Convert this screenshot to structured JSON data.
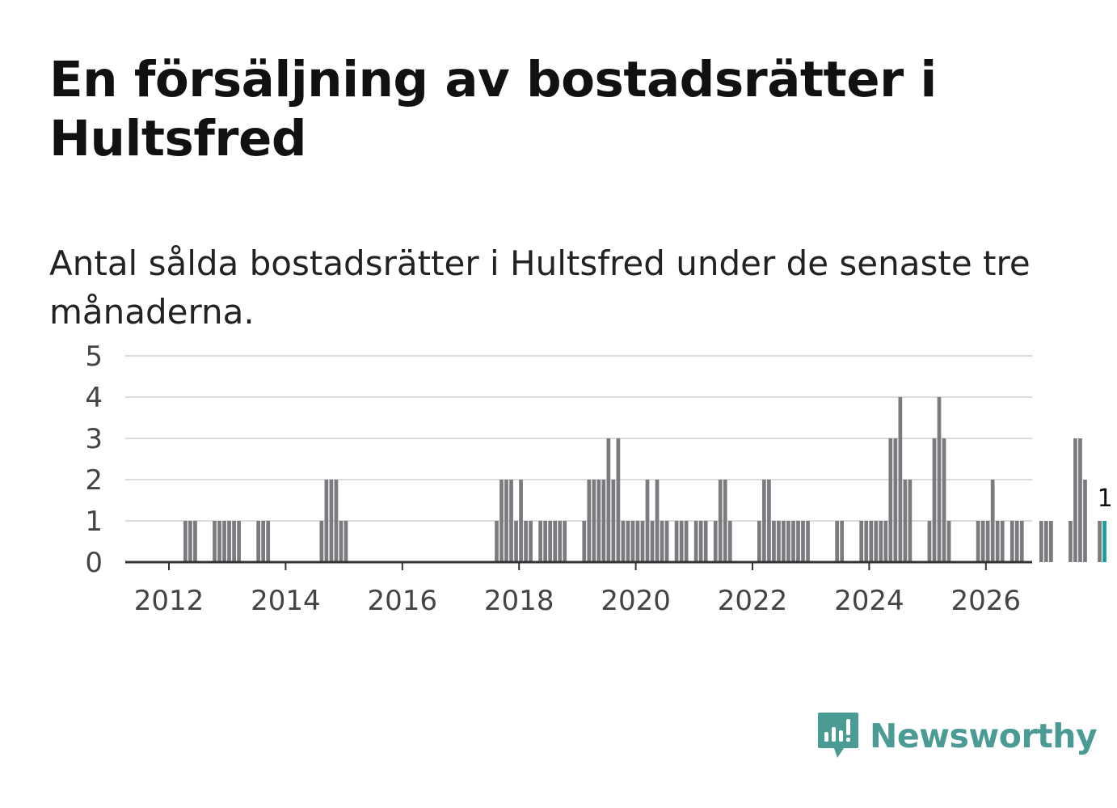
{
  "title": "En försäljning av bostadsrätter i Hultsfred",
  "subtitle": "Antal sålda bostadsrätter i Hultsfred under de senaste tre månaderna.",
  "brand": {
    "name": "Newsworthy",
    "icon": "newsworthy-logo-icon",
    "color": "#4a9b94"
  },
  "colors": {
    "bar": "#7a7a7f",
    "highlight": "#1a9e9a",
    "grid": "#dcdcdc",
    "axis": "#333333"
  },
  "chart_data": {
    "type": "bar",
    "title": "En försäljning av bostadsrätter i Hultsfred",
    "xlabel": "",
    "ylabel": "",
    "x_start": "2011-01",
    "frequency": "monthly",
    "x_ticks": [
      "2012",
      "2014",
      "2016",
      "2018",
      "2020",
      "2022",
      "2024",
      "2026"
    ],
    "y_ticks": [
      "0",
      "1",
      "2",
      "3",
      "4",
      "5"
    ],
    "ylim": [
      0,
      5
    ],
    "grid": true,
    "values": [
      0,
      0,
      0,
      0,
      0,
      0,
      0,
      0,
      0,
      0,
      0,
      0,
      0,
      0,
      0,
      1,
      1,
      1,
      0,
      0,
      0,
      1,
      1,
      1,
      1,
      1,
      1,
      0,
      0,
      0,
      1,
      1,
      1,
      0,
      0,
      0,
      0,
      0,
      0,
      0,
      0,
      0,
      0,
      1,
      2,
      2,
      2,
      1,
      1,
      0,
      0,
      0,
      0,
      0,
      0,
      0,
      0,
      0,
      0,
      0,
      0,
      0,
      0,
      0,
      0,
      0,
      0,
      0,
      0,
      0,
      0,
      0,
      0,
      0,
      0,
      0,
      0,
      0,
      0,
      1,
      2,
      2,
      2,
      1,
      2,
      1,
      1,
      0,
      1,
      1,
      1,
      1,
      1,
      1,
      0,
      0,
      0,
      1,
      2,
      2,
      2,
      2,
      3,
      2,
      3,
      1,
      1,
      1,
      1,
      1,
      2,
      1,
      2,
      1,
      1,
      0,
      1,
      1,
      1,
      0,
      1,
      1,
      1,
      0,
      1,
      2,
      2,
      1,
      0,
      0,
      0,
      0,
      0,
      1,
      2,
      2,
      1,
      1,
      1,
      1,
      1,
      1,
      1,
      1,
      0,
      0,
      0,
      0,
      0,
      1,
      1,
      0,
      0,
      0,
      1,
      1,
      1,
      1,
      1,
      1,
      3,
      3,
      4,
      2,
      2,
      0,
      0,
      0,
      1,
      3,
      4,
      3,
      1,
      0,
      0,
      0,
      0,
      0,
      1,
      1,
      1,
      2,
      1,
      1,
      0,
      1,
      1,
      1,
      0,
      0,
      0,
      1,
      1,
      1,
      0,
      0,
      0,
      1,
      3,
      3,
      2,
      0,
      0,
      1,
      1
    ],
    "highlight_last": true,
    "annotations": [
      {
        "label": "1"
      }
    ]
  }
}
